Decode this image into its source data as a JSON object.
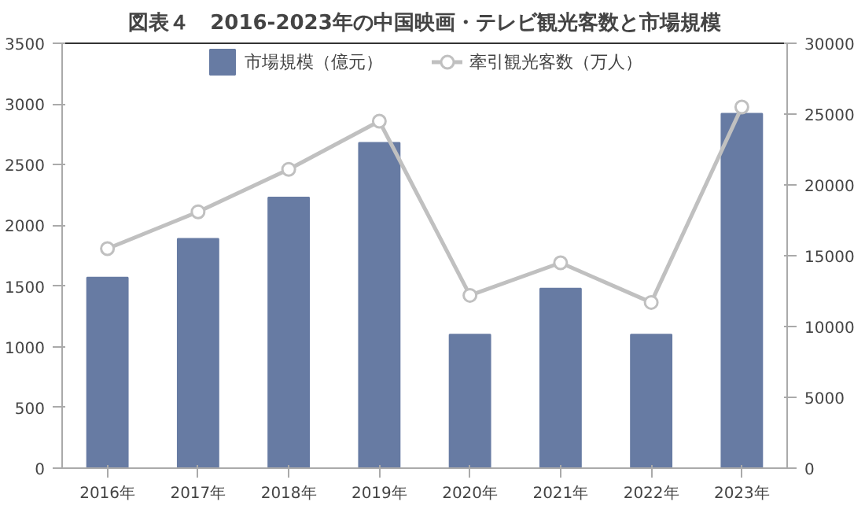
{
  "chart_data": {
    "type": "bar",
    "title": "図表４　2016-2023年の中国映画・テレビ観光客数と市場規模",
    "categories": [
      "2016年",
      "2017年",
      "2018年",
      "2019年",
      "2020年",
      "2021年",
      "2022年",
      "2023年"
    ],
    "series": [
      {
        "name": "市場規模（億元）",
        "color": "#677ba3",
        "values": [
          1570,
          1890,
          2230,
          2680,
          1100,
          1480,
          1100,
          2920
        ]
      },
      {
        "name": "牽引観光客数（万人）",
        "type": "line",
        "axis": "y2",
        "color": "#c0c0c0",
        "marker": "circle",
        "values": [
          15500,
          18100,
          21100,
          24500,
          12200,
          14500,
          11700,
          25500
        ]
      }
    ],
    "ylim": [
      0,
      3500
    ],
    "yticks": [
      0,
      500,
      1000,
      1500,
      2000,
      2500,
      3000,
      3500
    ],
    "y2lim": [
      0,
      30000
    ],
    "y2ticks": [
      0,
      5000,
      10000,
      15000,
      20000,
      25000,
      30000
    ],
    "legend": "top",
    "grid": false
  }
}
